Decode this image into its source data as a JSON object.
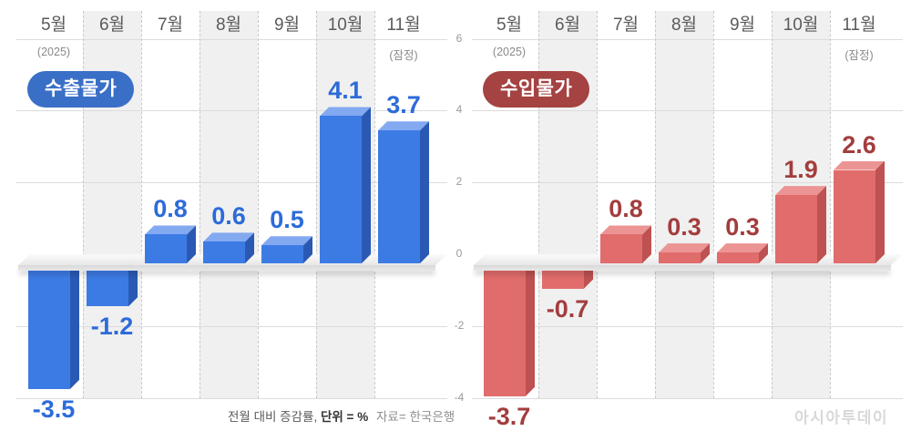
{
  "chart_data": [
    {
      "type": "bar",
      "title": "수출물가",
      "categories": [
        "5월",
        "6월",
        "7월",
        "8월",
        "9월",
        "10월",
        "11월"
      ],
      "values": [
        -3.5,
        -1.2,
        0.8,
        0.6,
        0.5,
        4.1,
        3.7
      ],
      "category_note_first": "(2025)",
      "category_note_last": "(잠정)",
      "yticks": [
        6,
        4,
        2,
        0,
        -2,
        -4
      ],
      "ylim": [
        -4.7,
        6
      ],
      "yticks_visible": false,
      "grid": true,
      "unit": "%",
      "colors": {
        "bar_front": "#3D7BE4",
        "bar_top": "#83A9F1",
        "bar_side": "#2A59B4",
        "value_label": "#2D6BD9",
        "badge_bg": "#3A6FC7",
        "badge_text": "#FFFFFF"
      }
    },
    {
      "type": "bar",
      "title": "수입물가",
      "categories": [
        "5월",
        "6월",
        "7월",
        "8월",
        "9월",
        "10월",
        "11월"
      ],
      "values": [
        -3.7,
        -0.7,
        0.8,
        0.3,
        0.3,
        1.9,
        2.6
      ],
      "category_note_first": "(2025)",
      "category_note_last": "(잠정)",
      "yticks": [
        6,
        4,
        2,
        0,
        -2,
        -4
      ],
      "ylim": [
        -4.7,
        6
      ],
      "yticks_visible": true,
      "grid": true,
      "unit": "%",
      "colors": {
        "bar_front": "#E16C6C",
        "bar_top": "#EC9494",
        "bar_side": "#BE5151",
        "value_label": "#A33D3D",
        "badge_bg": "#A54242",
        "badge_text": "#FFFFFF"
      }
    }
  ],
  "footer": {
    "measure_note": "전월 대비 증감률,",
    "unit_label": "단위 = %",
    "source": "자료= 한국은행"
  },
  "watermark": "아시아투데이"
}
